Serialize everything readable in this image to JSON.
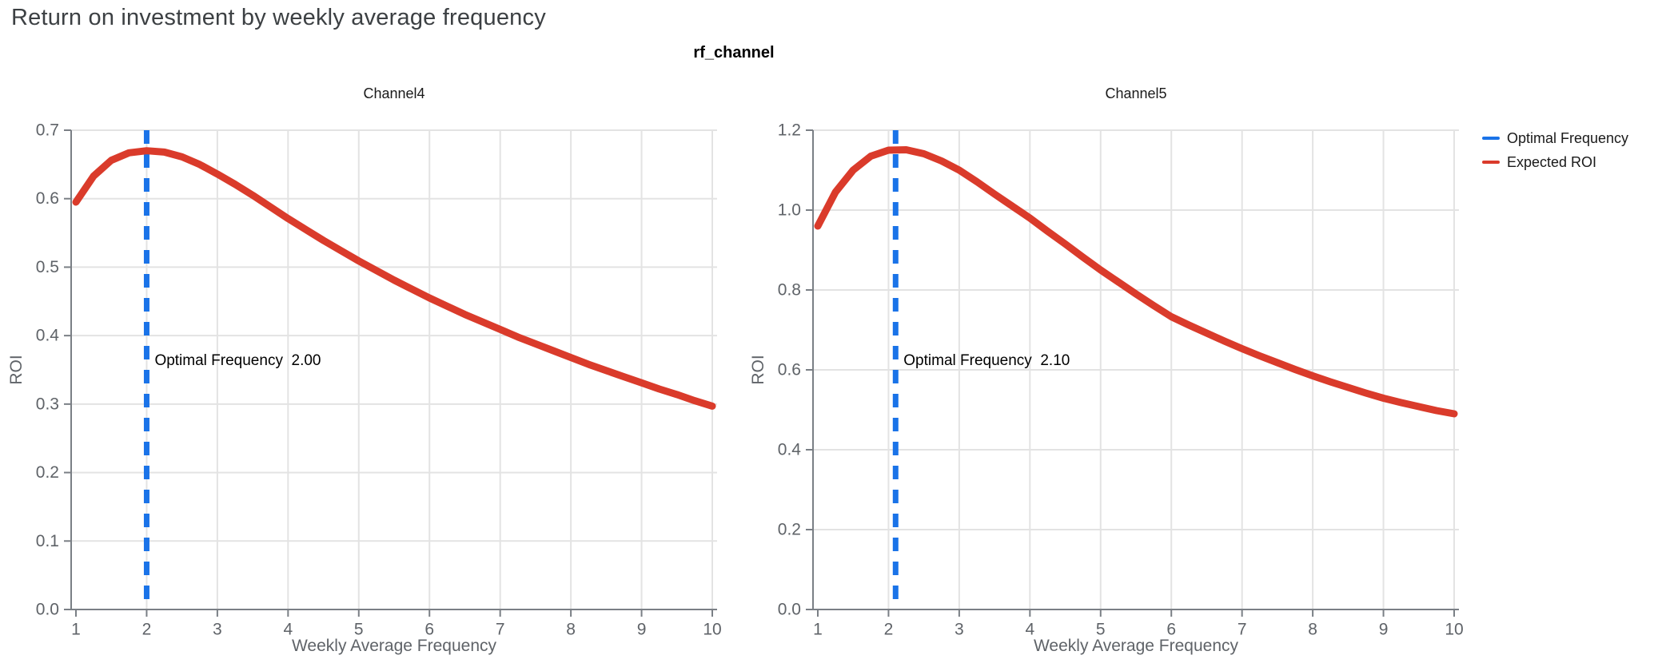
{
  "page": {
    "title": "Return on investment by weekly average frequency",
    "facet_label": "rf_channel"
  },
  "colors": {
    "optimal": "#1A73E8",
    "roi": "#DA3B2B",
    "grid": "#E3E3E3",
    "axis": "#7A7F85",
    "axis_text": "#5F6368",
    "title_text": "#3C4043"
  },
  "legend": {
    "items": [
      {
        "label": "Optimal Frequency",
        "color": "#1A73E8"
      },
      {
        "label": "Expected ROI",
        "color": "#DA3B2B"
      }
    ]
  },
  "chart_data": [
    {
      "type": "line",
      "title": "Channel4",
      "xlabel": "Weekly Average Frequency",
      "ylabel": "ROI",
      "xlim": [
        1,
        10
      ],
      "ylim": [
        0,
        0.7
      ],
      "grid": true,
      "x_tick_values": [
        1,
        2,
        3,
        4,
        5,
        6,
        7,
        8,
        9,
        10
      ],
      "x_tick_labels": [
        "1",
        "2",
        "3",
        "4",
        "5",
        "6",
        "7",
        "8",
        "9",
        "10"
      ],
      "y_tick_values": [
        0.0,
        0.1,
        0.2,
        0.3,
        0.4,
        0.5,
        0.6,
        0.7
      ],
      "y_tick_labels": [
        "0.0",
        "0.1",
        "0.2",
        "0.3",
        "0.4",
        "0.5",
        "0.6",
        "0.7"
      ],
      "vline": {
        "name": "Optimal Frequency",
        "x": 2.0
      },
      "annotation": "Optimal Frequency  2.00",
      "series": [
        {
          "name": "Expected ROI",
          "x": [
            1.0,
            1.25,
            1.5,
            1.75,
            2.0,
            2.25,
            2.5,
            2.75,
            3.0,
            3.25,
            3.5,
            3.75,
            4.0,
            4.25,
            4.5,
            4.75,
            5.0,
            5.25,
            5.5,
            5.75,
            6.0,
            6.25,
            6.5,
            6.75,
            7.0,
            7.25,
            7.5,
            7.75,
            8.0,
            8.25,
            8.5,
            8.75,
            9.0,
            9.25,
            9.5,
            9.75,
            10.0
          ],
          "y": [
            0.595,
            0.633,
            0.656,
            0.667,
            0.67,
            0.668,
            0.661,
            0.65,
            0.636,
            0.621,
            0.605,
            0.588,
            0.571,
            0.555,
            0.539,
            0.524,
            0.509,
            0.495,
            0.481,
            0.468,
            0.455,
            0.443,
            0.431,
            0.42,
            0.409,
            0.398,
            0.388,
            0.378,
            0.368,
            0.358,
            0.349,
            0.34,
            0.331,
            0.322,
            0.314,
            0.305,
            0.297
          ]
        }
      ]
    },
    {
      "type": "line",
      "title": "Channel5",
      "xlabel": "Weekly Average Frequency",
      "ylabel": "ROI",
      "xlim": [
        1,
        10
      ],
      "ylim": [
        0,
        1.2
      ],
      "grid": true,
      "x_tick_values": [
        1,
        2,
        3,
        4,
        5,
        6,
        7,
        8,
        9,
        10
      ],
      "x_tick_labels": [
        "1",
        "2",
        "3",
        "4",
        "5",
        "6",
        "7",
        "8",
        "9",
        "10"
      ],
      "y_tick_values": [
        0.0,
        0.2,
        0.4,
        0.6,
        0.8,
        1.0,
        1.2
      ],
      "y_tick_labels": [
        "0.0",
        "0.2",
        "0.4",
        "0.6",
        "0.8",
        "1.0",
        "1.2"
      ],
      "vline": {
        "name": "Optimal Frequency",
        "x": 2.1
      },
      "annotation": "Optimal Frequency  2.10",
      "series": [
        {
          "name": "Expected ROI",
          "x": [
            1.0,
            1.25,
            1.5,
            1.75,
            2.0,
            2.25,
            2.5,
            2.75,
            3.0,
            3.25,
            3.5,
            3.75,
            4.0,
            4.25,
            4.5,
            4.75,
            5.0,
            5.25,
            5.5,
            5.75,
            6.0,
            6.25,
            6.5,
            6.75,
            7.0,
            7.25,
            7.5,
            7.75,
            8.0,
            8.25,
            8.5,
            8.75,
            9.0,
            9.25,
            9.5,
            9.75,
            10.0
          ],
          "y": [
            0.96,
            1.045,
            1.1,
            1.135,
            1.15,
            1.151,
            1.141,
            1.123,
            1.1,
            1.071,
            1.04,
            1.01,
            0.98,
            0.947,
            0.915,
            0.882,
            0.85,
            0.82,
            0.79,
            0.761,
            0.733,
            0.712,
            0.692,
            0.672,
            0.653,
            0.635,
            0.618,
            0.601,
            0.585,
            0.57,
            0.556,
            0.542,
            0.529,
            0.518,
            0.508,
            0.498,
            0.49
          ]
        }
      ]
    }
  ]
}
